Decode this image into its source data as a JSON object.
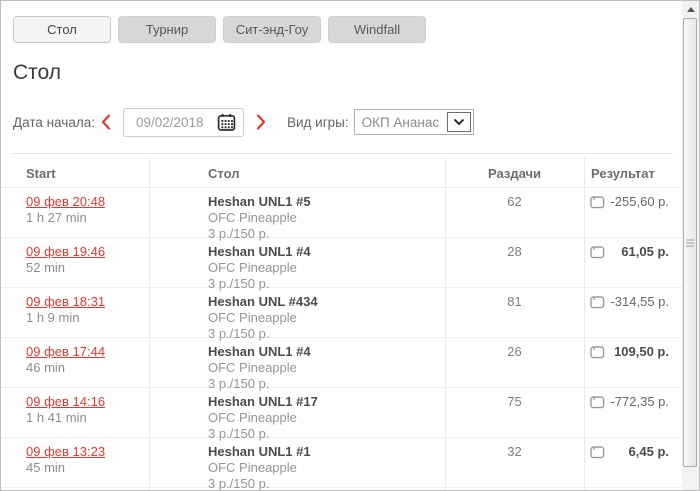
{
  "tabs": [
    {
      "label": "Стол",
      "active": true
    },
    {
      "label": "Турнир",
      "active": false
    },
    {
      "label": "Сит-энд-Гоу",
      "active": false
    },
    {
      "label": "Windfall",
      "active": false
    }
  ],
  "page_title": "Стол",
  "filters": {
    "date_label": "Дата начала:",
    "date_value": "09/02/2018",
    "game_label": "Вид игры:",
    "game_value": "ОКП Ананас"
  },
  "icons": {
    "prev": "chevron-left",
    "next": "chevron-right",
    "calendar": "calendar-icon",
    "select_arrow": "chevron-down-icon",
    "result": "wallet-icon",
    "scroll_up": "arrow-up-icon"
  },
  "colors": {
    "accent_red": "#e8382c",
    "tab_inactive_bg": "#d7d7d7",
    "tab_active_bg": "#f4f4f4",
    "positive_text": "#4c4c4c",
    "negative_text": "#666666"
  },
  "table": {
    "headers": {
      "start": "Start",
      "table": "Стол",
      "hands": "Раздачи",
      "result": "Результат"
    },
    "rows": [
      {
        "start_link": "09 фев 20:48",
        "duration": "1 h 27 min",
        "table_name": "Heshan UNL1 #5",
        "game": "OFC Pineapple",
        "stakes": "3 р./150 р.",
        "hands": "62",
        "result": "-255,60 р.",
        "positive": false
      },
      {
        "start_link": "09 фев 19:46",
        "duration": "52 min",
        "table_name": "Heshan UNL1 #4",
        "game": "OFC Pineapple",
        "stakes": "3 р./150 р.",
        "hands": "28",
        "result": "61,05 р.",
        "positive": true
      },
      {
        "start_link": "09 фев 18:31",
        "duration": "1 h 9 min",
        "table_name": "Heshan UNL #434",
        "game": "OFC Pineapple",
        "stakes": "3 р./150 р.",
        "hands": "81",
        "result": "-314,55 р.",
        "positive": false
      },
      {
        "start_link": "09 фев 17:44",
        "duration": "46 min",
        "table_name": "Heshan UNL1 #4",
        "game": "OFC Pineapple",
        "stakes": "3 р./150 р.",
        "hands": "26",
        "result": "109,50 р.",
        "positive": true
      },
      {
        "start_link": "09 фев 14:16",
        "duration": "1 h 41 min",
        "table_name": "Heshan UNL1 #17",
        "game": "OFC Pineapple",
        "stakes": "3 р./150 р.",
        "hands": "75",
        "result": "-772,35 р.",
        "positive": false
      },
      {
        "start_link": "09 фев 13:23",
        "duration": "45 min",
        "table_name": "Heshan UNL1 #1",
        "game": "OFC Pineapple",
        "stakes": "3 р./150 р.",
        "hands": "32",
        "result": "6,45 р.",
        "positive": true
      }
    ]
  }
}
